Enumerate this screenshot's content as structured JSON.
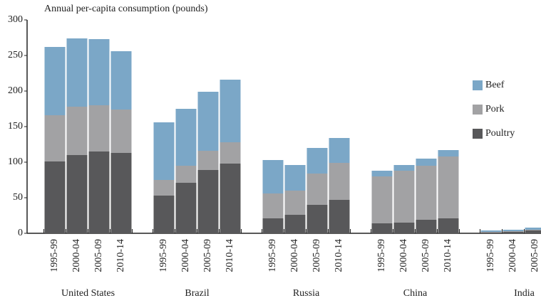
{
  "chart_data": {
    "type": "bar",
    "stacked": true,
    "title": "Annual per-capita consumption (pounds)",
    "groups": [
      {
        "name": "United States",
        "categories": [
          "1995-99",
          "2000-04",
          "2005-09",
          "2010-14"
        ]
      },
      {
        "name": "Brazil",
        "categories": [
          "1995-99",
          "2000-04",
          "2005-09",
          "2010-14"
        ]
      },
      {
        "name": "Russia",
        "categories": [
          "1995-99",
          "2000-04",
          "2005-09",
          "2010-14"
        ]
      },
      {
        "name": "China",
        "categories": [
          "1995-99",
          "2000-04",
          "2005-09",
          "2010-14"
        ]
      },
      {
        "name": "India",
        "categories": [
          "1995-99",
          "2000-04",
          "2005-09"
        ]
      }
    ],
    "series": [
      {
        "name": "Poultry",
        "color": "#58585a",
        "values": [
          101,
          110,
          115,
          113,
          53,
          71,
          89,
          98,
          21,
          26,
          40,
          47,
          14,
          15,
          19,
          21,
          1,
          2,
          4
        ]
      },
      {
        "name": "Pork",
        "color": "#a2a2a4",
        "values": [
          65,
          68,
          65,
          61,
          22,
          24,
          27,
          30,
          35,
          34,
          44,
          52,
          66,
          73,
          76,
          87,
          1,
          1,
          1
        ]
      },
      {
        "name": "Beef",
        "color": "#7ba7c7",
        "values": [
          96,
          96,
          93,
          82,
          81,
          80,
          83,
          88,
          47,
          36,
          36,
          35,
          8,
          8,
          10,
          9,
          2,
          2,
          3
        ]
      }
    ],
    "ylim": [
      0,
      300
    ],
    "yticks": [
      0,
      50,
      100,
      150,
      200,
      250,
      300
    ],
    "grid": false,
    "legend": "right"
  }
}
